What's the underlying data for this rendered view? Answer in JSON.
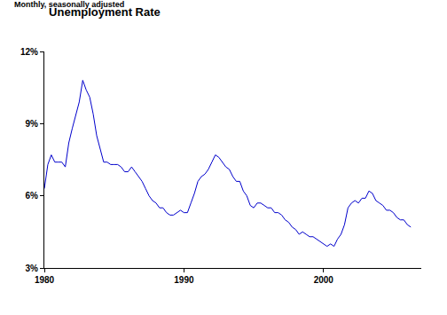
{
  "chart_data": {
    "type": "line",
    "title": "Unemployment Rate",
    "subtitle": "Monthly, seasonally adjusted",
    "x": [
      1980,
      1980.25,
      1980.5,
      1980.75,
      1981,
      1981.25,
      1981.5,
      1981.75,
      1982,
      1982.25,
      1982.5,
      1982.75,
      1983,
      1983.25,
      1983.5,
      1983.75,
      1984,
      1984.25,
      1984.5,
      1984.75,
      1985,
      1985.25,
      1985.5,
      1985.75,
      1986,
      1986.25,
      1986.5,
      1986.75,
      1987,
      1987.25,
      1987.5,
      1987.75,
      1988,
      1988.25,
      1988.5,
      1988.75,
      1989,
      1989.25,
      1989.5,
      1989.75,
      1990,
      1990.25,
      1990.5,
      1990.75,
      1991,
      1991.25,
      1991.5,
      1991.75,
      1992,
      1992.25,
      1992.5,
      1992.75,
      1993,
      1993.25,
      1993.5,
      1993.75,
      1994,
      1994.25,
      1994.5,
      1994.75,
      1995,
      1995.25,
      1995.5,
      1995.75,
      1996,
      1996.25,
      1996.5,
      1996.75,
      1997,
      1997.25,
      1997.5,
      1997.75,
      1998,
      1998.25,
      1998.5,
      1998.75,
      1999,
      1999.25,
      1999.5,
      1999.75,
      2000,
      2000.25,
      2000.5,
      2000.75,
      2001,
      2001.25,
      2001.5,
      2001.75,
      2002,
      2002.25,
      2002.5,
      2002.75,
      2003,
      2003.25,
      2003.5,
      2003.75,
      2004,
      2004.25,
      2004.5,
      2004.75,
      2005,
      2005.25,
      2005.5,
      2005.75,
      2006,
      2006.25
    ],
    "values": [
      6.3,
      7.3,
      7.7,
      7.4,
      7.4,
      7.4,
      7.2,
      8.2,
      8.8,
      9.4,
      9.9,
      10.8,
      10.4,
      10.1,
      9.4,
      8.5,
      7.9,
      7.4,
      7.4,
      7.3,
      7.3,
      7.3,
      7.2,
      7.0,
      7.0,
      7.2,
      7.0,
      6.8,
      6.6,
      6.3,
      6.0,
      5.8,
      5.7,
      5.5,
      5.5,
      5.3,
      5.2,
      5.2,
      5.3,
      5.4,
      5.3,
      5.3,
      5.7,
      6.1,
      6.6,
      6.8,
      6.9,
      7.1,
      7.4,
      7.7,
      7.6,
      7.4,
      7.2,
      7.1,
      6.8,
      6.6,
      6.6,
      6.2,
      6.0,
      5.6,
      5.5,
      5.7,
      5.7,
      5.6,
      5.5,
      5.5,
      5.3,
      5.3,
      5.2,
      5.0,
      4.9,
      4.7,
      4.6,
      4.4,
      4.5,
      4.4,
      4.3,
      4.3,
      4.2,
      4.1,
      4.0,
      3.9,
      4.0,
      3.9,
      4.2,
      4.4,
      4.8,
      5.5,
      5.7,
      5.8,
      5.7,
      5.9,
      5.9,
      6.2,
      6.1,
      5.8,
      5.7,
      5.6,
      5.4,
      5.4,
      5.3,
      5.1,
      5.0,
      5.0,
      4.8,
      4.7
    ],
    "color": "#0000cc",
    "xlim": [
      1980,
      2007
    ],
    "xticks": [
      1980,
      1990,
      2000
    ],
    "ylim": [
      3,
      12
    ],
    "yticks": [
      {
        "value": 3,
        "label": "3%"
      },
      {
        "value": 6,
        "label": "6%"
      },
      {
        "value": 9,
        "label": "9%"
      },
      {
        "value": 12,
        "label": "12%"
      }
    ],
    "grid": false
  }
}
